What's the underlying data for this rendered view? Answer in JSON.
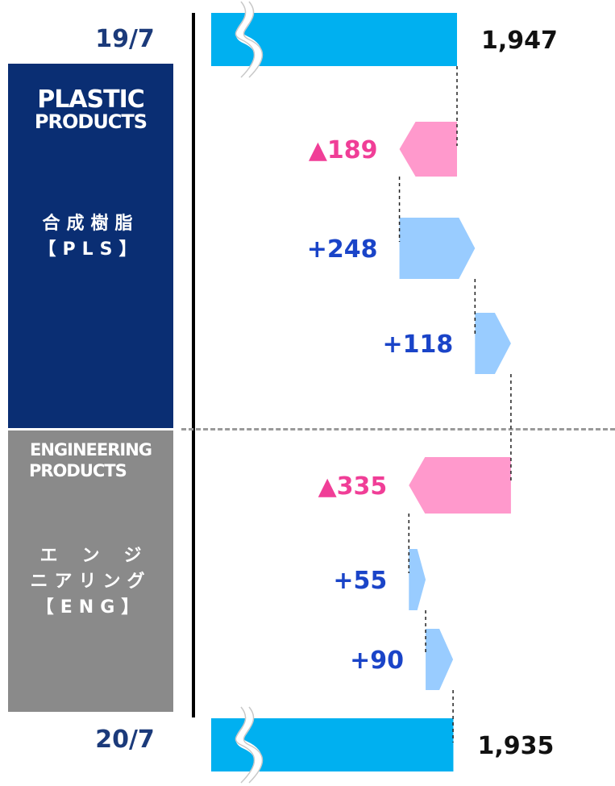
{
  "colors": {
    "total": "#00b0f0",
    "increase": "#99ccff",
    "decrease": "#ff99cc",
    "increase_text": "#1a44c8",
    "decrease_text": "#f03e97",
    "total_text": "#111111",
    "pls_panel": "#0a2e73",
    "eng_panel": "#8a8a8a"
  },
  "periods": {
    "start": "19/7",
    "end": "20/7"
  },
  "segments": {
    "pls": {
      "logo_line1": "PLASTIC",
      "logo_line2": "PRODUCTS",
      "name_line1": "合成樹脂",
      "name_line2": "【PLS】"
    },
    "eng": {
      "logo_line1": "ENGINEERING",
      "logo_line2": "PRODUCTS",
      "name_line1": "エンジ",
      "name_line2": "ニアリング",
      "name_line3": "【ENG】"
    }
  },
  "chart_data": {
    "type": "bar",
    "orientation": "horizontal waterfall",
    "axis_break": true,
    "categories": [
      "19/7",
      "",
      "",
      "",
      "",
      "",
      "",
      "20/7"
    ],
    "bars": [
      {
        "kind": "total",
        "value": 1947,
        "label": "1,947"
      },
      {
        "kind": "decrease",
        "value": -189,
        "label": "▲189"
      },
      {
        "kind": "increase",
        "value": 248,
        "label": "+248"
      },
      {
        "kind": "increase",
        "value": 118,
        "label": "+118"
      },
      {
        "kind": "decrease",
        "value": -335,
        "label": "▲335"
      },
      {
        "kind": "increase",
        "value": 55,
        "label": "+55"
      },
      {
        "kind": "increase",
        "value": 90,
        "label": "+90"
      },
      {
        "kind": "total",
        "value": 1935,
        "label": "1,935"
      }
    ]
  }
}
